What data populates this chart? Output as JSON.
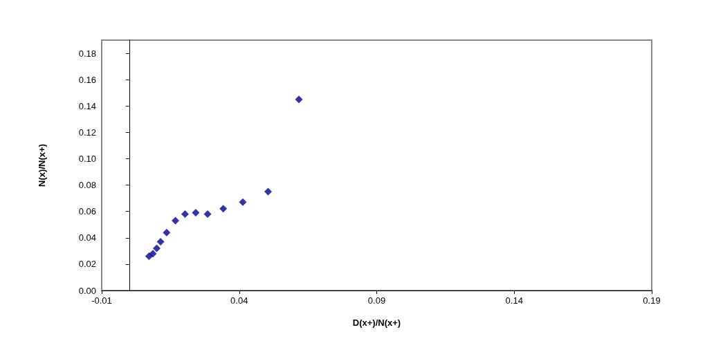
{
  "chart_data": {
    "type": "scatter",
    "xlabel": "D(x+)/N(x+)",
    "ylabel": "N(x)/N(x+)",
    "x": [
      0.0072,
      0.0086,
      0.01,
      0.0114,
      0.0136,
      0.0168,
      0.0203,
      0.0242,
      0.0285,
      0.0342,
      0.0413,
      0.0505,
      0.0617
    ],
    "series": [
      {
        "color": "#00008b",
        "values": [
          0.026,
          0.028,
          0.032,
          0.037,
          0.044,
          0.053,
          0.058,
          0.059,
          0.058,
          0.062,
          0.067,
          0.075,
          0.145
        ]
      }
    ],
    "xlim": [
      -0.01,
      0.19
    ],
    "xticks": [
      -0.01,
      0.04,
      0.09,
      0.14,
      0.19
    ],
    "ylim": [
      0,
      0.19
    ],
    "yticks": [
      {
        "value": 0,
        "label": "0.00"
      },
      0.02,
      0.04,
      0.06,
      0.08,
      {
        "value": 0.1,
        "label": "0.10"
      },
      0.12,
      0.14,
      0.16,
      0.18
    ],
    "grid": false,
    "marker": "diamond"
  }
}
